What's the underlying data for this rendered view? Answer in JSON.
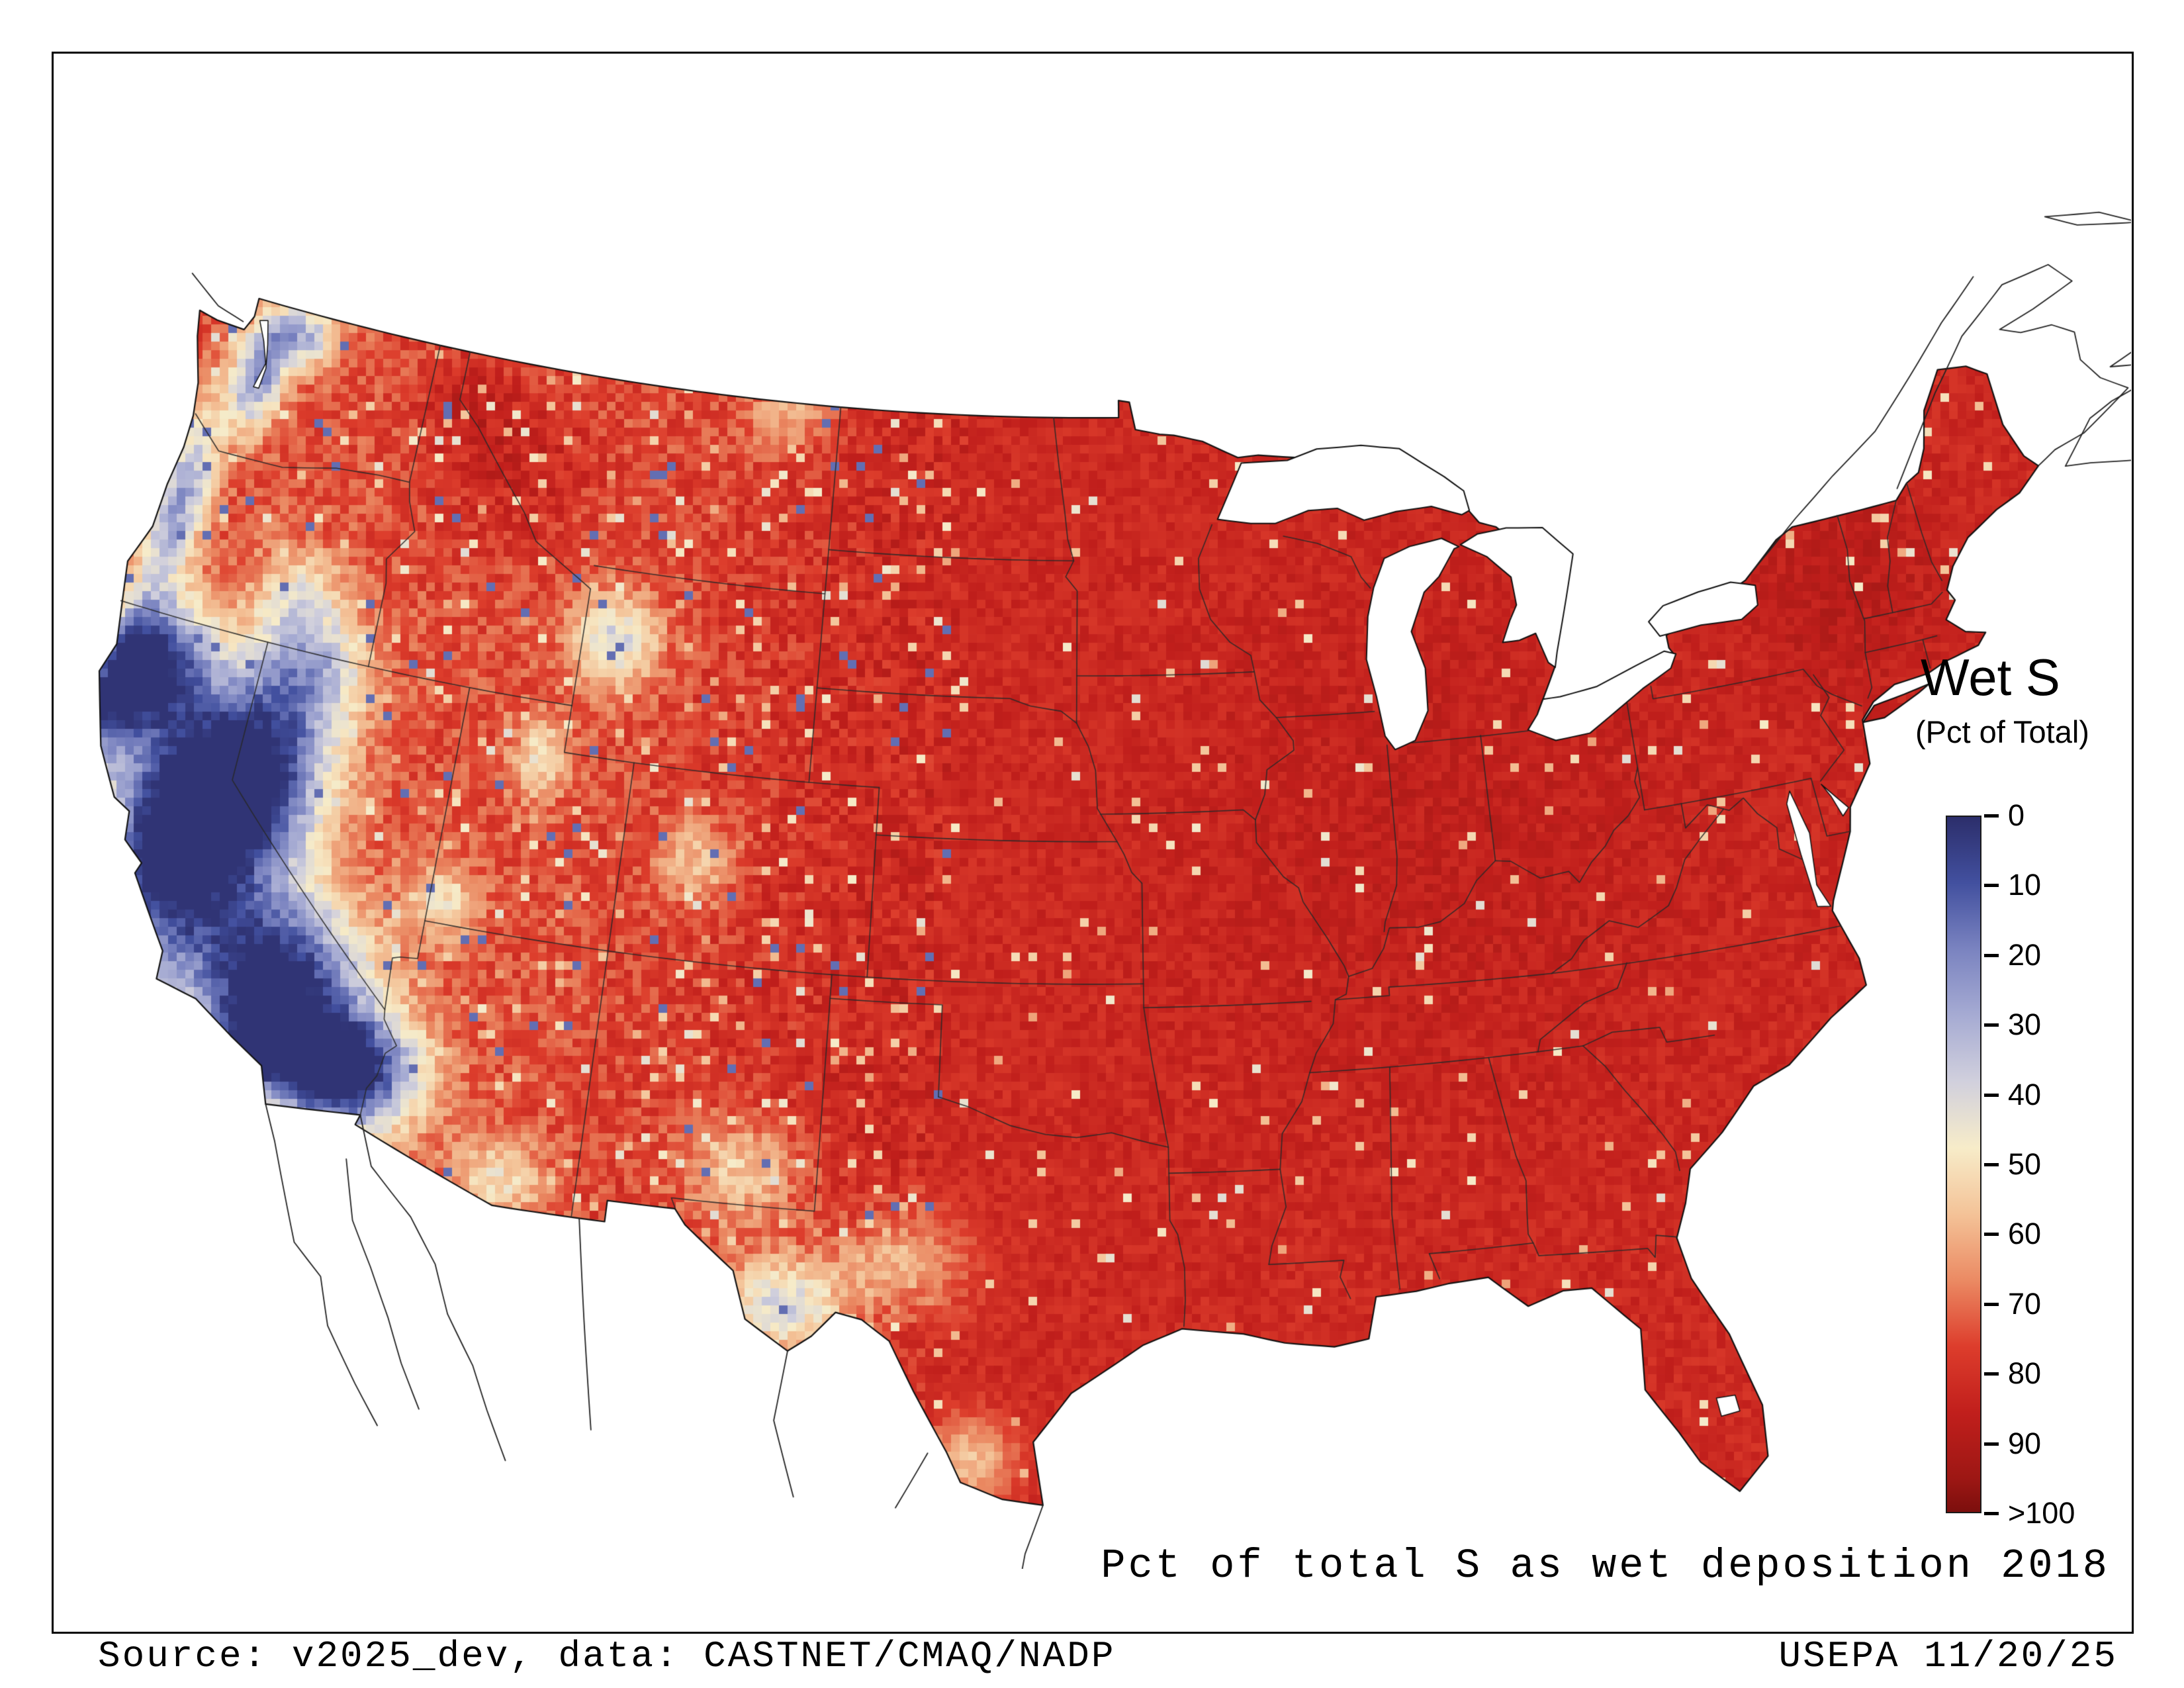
{
  "legend": {
    "title": "Wet S",
    "subtitle": "(Pct of Total)",
    "tick_labels": [
      "0",
      "10",
      "20",
      "30",
      "40",
      "50",
      "60",
      "70",
      "80",
      "90",
      ">100"
    ],
    "colormap": [
      {
        "value": 0,
        "color": "#2c2e6b"
      },
      {
        "value": 10,
        "color": "#42509f"
      },
      {
        "value": 20,
        "color": "#7a83c0"
      },
      {
        "value": 30,
        "color": "#a6abd3"
      },
      {
        "value": 40,
        "color": "#d1d0dd"
      },
      {
        "value": 50,
        "color": "#f7ecc9"
      },
      {
        "value": 60,
        "color": "#f4c398"
      },
      {
        "value": 70,
        "color": "#eb8a63"
      },
      {
        "value": 80,
        "color": "#dd3d2c"
      },
      {
        "value": 90,
        "color": "#c11f1c"
      },
      {
        "value": 100,
        "color": "#9d1714"
      },
      {
        "value": 105,
        "color": "#7c0f0d"
      }
    ]
  },
  "caption": "Pct of total S as wet deposition 2018",
  "footer": {
    "source": "Source: v2025_dev, data: CASTNET/CMAQ/NADP",
    "agency_date": "USEPA 11/20/25"
  }
}
